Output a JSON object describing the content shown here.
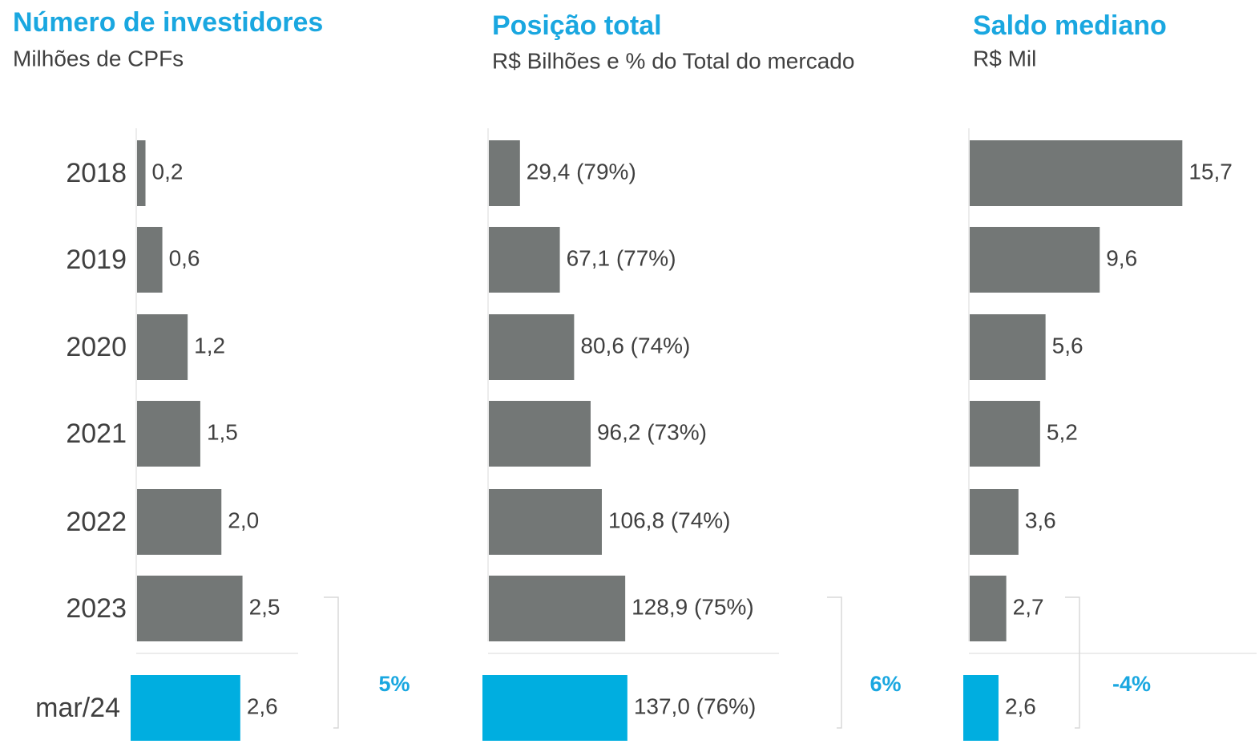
{
  "chart_data": [
    {
      "type": "barh",
      "title": "Número de investidores",
      "subtitle": "Milhões de CPFs",
      "categories": [
        "2018",
        "2019",
        "2020",
        "2021",
        "2022",
        "2023",
        "mar/24"
      ],
      "values": [
        0.2,
        0.6,
        1.2,
        1.5,
        2.0,
        2.5,
        2.6
      ],
      "value_labels": [
        "0,2",
        "0,6",
        "1,2",
        "1,5",
        "2,0",
        "2,5",
        "2,6"
      ],
      "colors": [
        "#737776",
        "#737776",
        "#737776",
        "#737776",
        "#737776",
        "#737776",
        "#00aee0"
      ],
      "xlim": [
        0,
        3.8
      ],
      "annotation": "5%"
    },
    {
      "type": "barh",
      "title": "Posição total",
      "subtitle": "R$ Bilhões e % do Total do mercado",
      "values": [
        29.4,
        67.1,
        80.6,
        96.2,
        106.8,
        128.9,
        137.0
      ],
      "value_labels": [
        "29,4 (79%)",
        "67,1 (77%)",
        "80,6 (74%)",
        "96,2 (73%)",
        "106,8 (74%)",
        "128,9 (75%)",
        "137,0 (76%)"
      ],
      "colors": [
        "#737776",
        "#737776",
        "#737776",
        "#737776",
        "#737776",
        "#737776",
        "#00aee0"
      ],
      "xlim": [
        0,
        300
      ],
      "annotation": "6%"
    },
    {
      "type": "barh",
      "title": "Saldo mediano",
      "subtitle": "R$ Mil",
      "values": [
        15.7,
        9.6,
        5.6,
        5.2,
        3.6,
        2.7,
        2.6
      ],
      "value_labels": [
        "15,7",
        "9,6",
        "5,6",
        "5,2",
        "3,6",
        "2,7",
        "2,6"
      ],
      "colors": [
        "#737776",
        "#737776",
        "#737776",
        "#737776",
        "#737776",
        "#737776",
        "#00aee0"
      ],
      "xlim": [
        0,
        20
      ],
      "annotation": "-4%"
    }
  ]
}
